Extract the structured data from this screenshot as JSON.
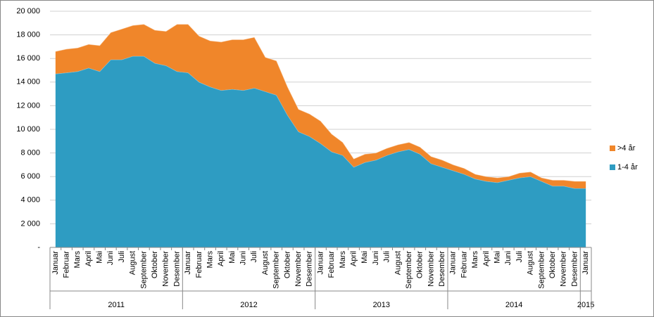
{
  "chart_data": {
    "type": "stacked-area",
    "categories": [
      "Januar",
      "Februar",
      "Mars",
      "April",
      "Mai",
      "Juni",
      "Juli",
      "August",
      "September",
      "Oktober",
      "November",
      "Desember",
      "Januar",
      "Februar",
      "Mars",
      "April",
      "Mai",
      "Juni",
      "Juli",
      "August",
      "September",
      "Oktober",
      "November",
      "Desember",
      "Januar",
      "Februar",
      "Mars",
      "April",
      "Mai",
      "Juni",
      "Juli",
      "August",
      "September",
      "Oktober",
      "November",
      "Desember",
      "Januar",
      "Februar",
      "Mars",
      "April",
      "Mai",
      "Juni",
      "Juli",
      "August",
      "September",
      "Oktober",
      "November",
      "Desember",
      "Januar"
    ],
    "category_groups": [
      {
        "label": "2011",
        "size": 12
      },
      {
        "label": "2012",
        "size": 12
      },
      {
        "label": "2013",
        "size": 12
      },
      {
        "label": "2014",
        "size": 12
      },
      {
        "label": "2015",
        "size": 1
      }
    ],
    "series": [
      {
        "name": "1-4 år",
        "color": "#2e9cc2",
        "values": [
          14700,
          14800,
          14900,
          15200,
          14900,
          15900,
          15900,
          16200,
          16200,
          15600,
          15400,
          14900,
          14800,
          14000,
          13600,
          13300,
          13400,
          13300,
          13500,
          13200,
          12900,
          11200,
          9800,
          9400,
          8800,
          8100,
          7800,
          6800,
          7200,
          7400,
          7800,
          8100,
          8300,
          7900,
          7100,
          6800,
          6500,
          6200,
          5800,
          5600,
          5500,
          5700,
          5900,
          6000,
          5600,
          5200,
          5200,
          5000,
          5000
        ]
      },
      {
        "name": ">4 år",
        "color": "#f0862a",
        "values": [
          1900,
          2000,
          2000,
          2000,
          2200,
          2300,
          2600,
          2600,
          2700,
          2800,
          2900,
          4000,
          4100,
          3900,
          3900,
          4100,
          4200,
          4300,
          4300,
          2900,
          2900,
          2400,
          1900,
          1900,
          1900,
          1500,
          1100,
          700,
          700,
          600,
          600,
          600,
          600,
          600,
          600,
          600,
          500,
          500,
          400,
          400,
          400,
          300,
          400,
          400,
          300,
          500,
          500,
          600,
          600
        ]
      }
    ],
    "ylim": [
      0,
      20000
    ],
    "yticks": [
      {
        "value": 0,
        "label": "-"
      },
      {
        "value": 2000,
        "label": "2 000"
      },
      {
        "value": 4000,
        "label": "4 000"
      },
      {
        "value": 6000,
        "label": "6 000"
      },
      {
        "value": 8000,
        "label": "8 000"
      },
      {
        "value": 10000,
        "label": "10 000"
      },
      {
        "value": 12000,
        "label": "12 000"
      },
      {
        "value": 14000,
        "label": "14 000"
      },
      {
        "value": 16000,
        "label": "16 000"
      },
      {
        "value": 18000,
        "label": "18 000"
      },
      {
        "value": 20000,
        "label": "20 000"
      }
    ],
    "grid": true,
    "legend": "right"
  }
}
